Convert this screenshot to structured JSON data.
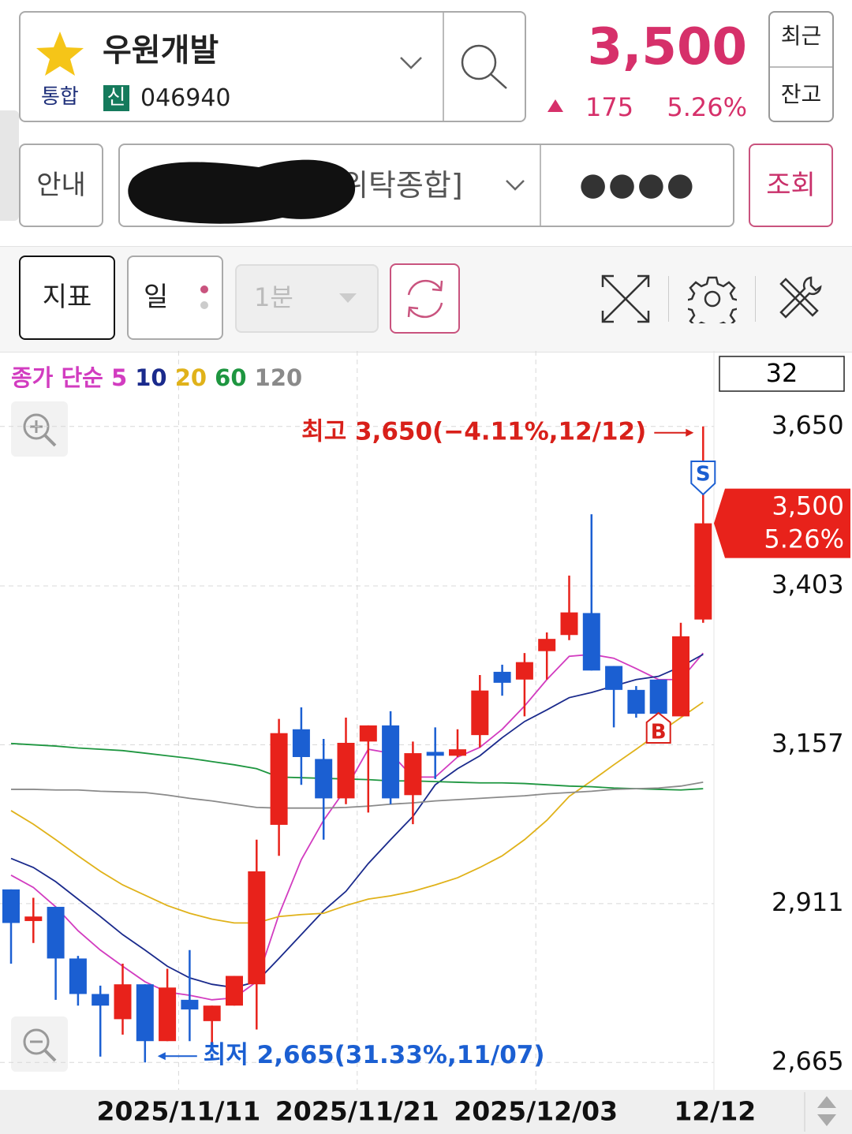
{
  "header": {
    "name": "우원개발",
    "market": "통합",
    "credit": "신",
    "code": "046940",
    "price": "3,500",
    "change": "175",
    "change_rate": "5.26%",
    "recent": "최근",
    "balance": "잔고"
  },
  "account": {
    "info": "안내",
    "account_name": "위탁종합]",
    "password": "●●●●",
    "query": "조회"
  },
  "toolbar": {
    "indicator": "지표",
    "period": "일",
    "minute": "1분"
  },
  "chart_data": {
    "type": "candlestick",
    "legend_title": "종가 단순",
    "visible_count": 32,
    "categories": [
      null,
      null,
      null,
      null,
      null,
      null,
      null,
      null,
      "2025/11/11",
      null,
      null,
      null,
      null,
      null,
      null,
      null,
      "2025/11/21",
      null,
      null,
      null,
      null,
      null,
      null,
      null,
      "2025/12/03",
      null,
      null,
      null,
      null,
      null,
      null,
      "12/12"
    ],
    "ohlc": {
      "up_color": "#e8221b",
      "down_color": "#1b5fd2",
      "open": [
        2933,
        2884,
        2906,
        2826,
        2771,
        2732,
        2786,
        2698,
        2762,
        2729,
        2753,
        2786,
        3033,
        3181,
        3135,
        3074,
        3162,
        3187,
        3079,
        3146,
        3140,
        3172,
        3270,
        3258,
        3302,
        3327,
        3361,
        3279,
        3242,
        3258,
        3201,
        3351
      ],
      "high": [
        2933,
        2920,
        2906,
        2830,
        2784,
        2818,
        2786,
        2810,
        2839,
        2753,
        2799,
        3010,
        3197,
        3215,
        3166,
        3199,
        3187,
        3209,
        3162,
        3184,
        3181,
        3265,
        3281,
        3299,
        3331,
        3419,
        3514,
        3279,
        3248,
        3258,
        3346,
        3650
      ],
      "low": [
        2818,
        2850,
        2762,
        2753,
        2674,
        2708,
        2665,
        2698,
        2698,
        2696,
        2753,
        2716,
        2985,
        3095,
        3010,
        3065,
        3052,
        3065,
        3034,
        3104,
        3138,
        3153,
        3233,
        3201,
        3258,
        3319,
        3272,
        3184,
        3199,
        3197,
        3201,
        3346
      ],
      "close": [
        2881,
        2891,
        2826,
        2771,
        2753,
        2786,
        2698,
        2781,
        2747,
        2753,
        2799,
        2961,
        3175,
        3138,
        3074,
        3160,
        3187,
        3074,
        3144,
        3140,
        3150,
        3241,
        3253,
        3285,
        3321,
        3362,
        3272,
        3242,
        3205,
        3205,
        3325,
        3500
      ]
    },
    "series": [
      {
        "name": "5",
        "color": "#d23cc0",
        "values": [
          2955,
          2936,
          2906,
          2869,
          2839,
          2814,
          2790,
          2774,
          2769,
          2762,
          2765,
          2790,
          2894,
          2979,
          3040,
          3089,
          3150,
          3144,
          3107,
          3107,
          3138,
          3153,
          3181,
          3217,
          3258,
          3294,
          3297,
          3291,
          3275,
          3258,
          3258,
          3299
        ]
      },
      {
        "name": "10",
        "color": "#1a2a8c",
        "values": [
          2981,
          2967,
          2945,
          2918,
          2891,
          2863,
          2839,
          2814,
          2796,
          2786,
          2781,
          2790,
          2826,
          2863,
          2900,
          2930,
          2973,
          3010,
          3046,
          3095,
          3120,
          3140,
          3168,
          3193,
          3211,
          3230,
          3238,
          3248,
          3258,
          3263,
          3278,
          3297
        ]
      },
      {
        "name": "20",
        "color": "#e0b21a",
        "values": [
          3055,
          3034,
          3010,
          2985,
          2961,
          2940,
          2924,
          2908,
          2896,
          2887,
          2881,
          2881,
          2891,
          2894,
          2896,
          2908,
          2918,
          2923,
          2930,
          2940,
          2951,
          2967,
          2985,
          3010,
          3040,
          3077,
          3101,
          3126,
          3150,
          3175,
          3199,
          3223
        ]
      },
      {
        "name": "60",
        "color": "#1e9640",
        "values": [
          3159,
          3157,
          3155,
          3152,
          3150,
          3148,
          3144,
          3140,
          3136,
          3131,
          3126,
          3120,
          3107,
          3106,
          3105,
          3104,
          3103,
          3101,
          3101,
          3100,
          3099,
          3098,
          3098,
          3097,
          3095,
          3093,
          3092,
          3090,
          3089,
          3088,
          3087,
          3089
        ]
      },
      {
        "name": "120",
        "color": "#8a8a8a",
        "values": [
          3088,
          3088,
          3087,
          3087,
          3085,
          3084,
          3083,
          3079,
          3074,
          3070,
          3065,
          3060,
          3059,
          3059,
          3059,
          3060,
          3062,
          3065,
          3067,
          3070,
          3072,
          3074,
          3076,
          3078,
          3081,
          3083,
          3085,
          3088,
          3089,
          3090,
          3093,
          3099
        ]
      }
    ],
    "ylim": [
      2625,
      3767
    ],
    "yticks": [
      {
        "value": 3650,
        "label": "3,650"
      },
      {
        "value": 3403,
        "label": "3,403"
      },
      {
        "value": 3157,
        "label": "3,157"
      },
      {
        "value": 2911,
        "label": "2,911"
      },
      {
        "value": 2665,
        "label": "2,665"
      }
    ],
    "grid": true,
    "annotations": {
      "high": "최고 3,650(−4.11%,12/12)",
      "low": "최저 2,665(31.33%,11/07)"
    },
    "price_tag": {
      "value": 3500,
      "label": "3,500",
      "change": "5.26%"
    },
    "signals": {
      "sell": "S",
      "buy": "B"
    }
  }
}
